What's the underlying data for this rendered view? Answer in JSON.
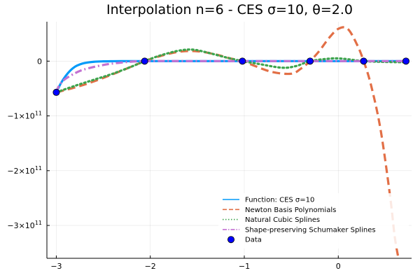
{
  "chart_data": {
    "type": "line",
    "title": "Interpolation n=6 - CES σ=10, θ=2.0",
    "xlabel": "",
    "ylabel": "",
    "xlim": [
      -3.1,
      0.78
    ],
    "ylim": [
      -360000000000.0,
      72000000000.0
    ],
    "xticks": [
      {
        "value": -3,
        "label": "−3"
      },
      {
        "value": -2,
        "label": "−2"
      },
      {
        "value": -1,
        "label": "−1"
      },
      {
        "value": 0,
        "label": "0"
      }
    ],
    "yticks": [
      {
        "value": 0,
        "label": "0",
        "exp": ""
      },
      {
        "value": -100000000000.0,
        "label": "−1×10",
        "exp": "11"
      },
      {
        "value": -200000000000.0,
        "label": "−2×10",
        "exp": "11"
      },
      {
        "value": -300000000000.0,
        "label": "−3×10",
        "exp": "11"
      }
    ],
    "grid": true,
    "legend_position": "bottom-right",
    "series": [
      {
        "name": "Function: CES σ=10",
        "color": "#009af9",
        "style": "solid",
        "x": [
          -3.0,
          -2.95,
          -2.9,
          -2.85,
          -2.8,
          -2.75,
          -2.7,
          -2.6,
          -2.5,
          -2.4,
          -2.3,
          -2.2,
          -2.0,
          -1.5,
          -1.0,
          -0.5,
          0.0,
          0.5,
          0.72
        ],
        "y": [
          -57000000000.0,
          -40000000000.0,
          -27000000000.0,
          -17000000000.0,
          -10000000000.0,
          -6000000000.0,
          -3500000000.0,
          -1200000000.0,
          -400000000.0,
          -150000000.0,
          -50000000.0,
          -20000000.0,
          0,
          0,
          0,
          0,
          0,
          0,
          0
        ]
      },
      {
        "name": "Newton Basis Polynomials",
        "color": "#e26f46",
        "style": "dash",
        "x": [
          -3.0,
          -2.8,
          -2.6,
          -2.4,
          -2.2,
          -2.06,
          -1.9,
          -1.7,
          -1.5,
          -1.3,
          -1.15,
          -1.02,
          -0.9,
          -0.7,
          -0.5,
          -0.4,
          -0.3,
          -0.2,
          -0.1,
          0.0,
          0.1,
          0.2,
          0.27,
          0.35,
          0.45,
          0.55,
          0.6,
          0.64
        ],
        "y": [
          -57000000000.0,
          -48000000000.0,
          -37000000000.0,
          -24000000000.0,
          -10000000000.0,
          0,
          9000000000.0,
          17000000000.0,
          18000000000.0,
          12000000000.0,
          5000000000.0,
          0,
          -8000000000.0,
          -20000000000.0,
          -23000000000.0,
          -14000000000.0,
          0,
          19000000000.0,
          42000000000.0,
          59000000000.0,
          59000000000.0,
          30000000000.0,
          0,
          -45000000000.0,
          -125000000000.0,
          -245000000000.0,
          -320000000000.0,
          -360000000000.0
        ]
      },
      {
        "name": "Natural Cubic Splines",
        "color": "#3da44d",
        "style": "dot",
        "x": [
          -3.0,
          -2.8,
          -2.6,
          -2.4,
          -2.2,
          -2.06,
          -1.9,
          -1.7,
          -1.55,
          -1.4,
          -1.2,
          -1.02,
          -0.85,
          -0.6,
          -0.45,
          -0.3,
          -0.1,
          0.0,
          0.1,
          0.27,
          0.5,
          0.72
        ],
        "y": [
          -57000000000.0,
          -45000000000.0,
          -34000000000.0,
          -23000000000.0,
          -10000000000.0,
          0,
          10000000000.0,
          19000000000.0,
          21000000000.0,
          16000000000.0,
          7000000000.0,
          0,
          -5000000000.0,
          -12000000000.0,
          -9000000000.0,
          0,
          4500000000.0,
          5000000000.0,
          3500000000.0,
          0,
          -1500000000.0,
          -2000000000.0
        ]
      },
      {
        "name": "Shape-preserving Schumaker Splines",
        "color": "#c271d2",
        "style": "dashdot",
        "x": [
          -3.0,
          -2.98,
          -2.95,
          -2.9,
          -2.8,
          -2.7,
          -2.5,
          -2.3,
          -2.06,
          -1.5,
          -1.0,
          -0.5,
          0.0,
          0.72
        ],
        "y": [
          -57000000000.0,
          -48000000000.0,
          -40000000000.0,
          -32000000000.0,
          -22000000000.0,
          -15000000000.0,
          -7000000000.0,
          -2500000000.0,
          0,
          0,
          0,
          0,
          0,
          0
        ]
      }
    ],
    "points": {
      "name": "Data",
      "color": "#0000ff",
      "x": [
        -3.0,
        -2.06,
        -1.02,
        -0.3,
        0.27,
        0.72
      ],
      "y": [
        -57000000000.0,
        0,
        0,
        0,
        0,
        0
      ]
    }
  }
}
